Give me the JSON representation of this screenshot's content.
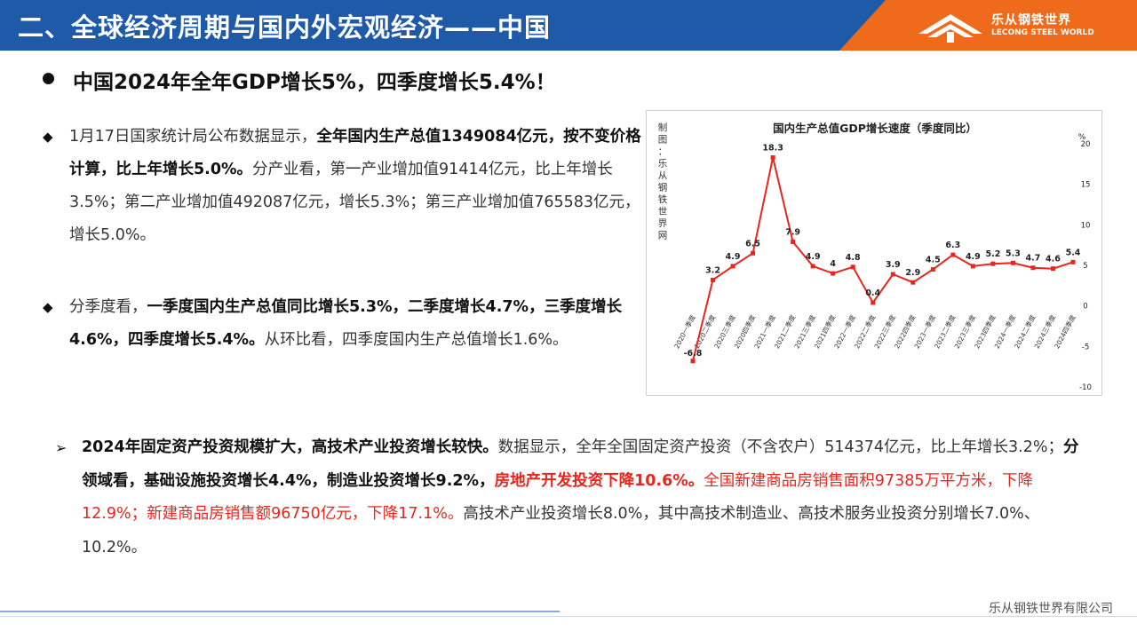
{
  "header": {
    "title": "二、全球经济周期与国内外宏观经济——中国",
    "logo_cn": "乐从钢铁世界",
    "logo_en": "LECONG STEEL WORLD",
    "colors": {
      "blue": "#1e5aa8",
      "orange": "#ef6a1a"
    }
  },
  "heading": "中国2024年全年GDP增长5%，四季度增长5.4%！",
  "paragraph1": {
    "t1": "1月17日国家统计局公布数据显示，",
    "t2": "全年国内生产总值1349084亿元，按不变价格计算，比上年增长5.0%。",
    "t3": "分产业看，第一产业增加值91414亿元，比上年增长3.5%；第二产业增加值492087亿元，增长5.3%；第三产业增加值765583亿元，增长5.0%。"
  },
  "paragraph2": {
    "t1": "分季度看，",
    "t2": "一季度国内生产总值同比增长5.3%，二季度增长4.7%，三季度增长4.6%，四季度增长5.4%。",
    "t3": "从环比看，四季度国内生产总值增长1.6%。"
  },
  "paragraph3": {
    "t1": "2024年固定资产投资规模扩大，高技术产业投资增长较快。",
    "t2": "数据显示，全年全国固定资产投资（不含农户）514374亿元，比上年增长3.2%；",
    "t3": "分领域看，基础设施投资增长4.4%，制造业投资增长9.2%，",
    "t4": "房地产开发投资下降10.6%。",
    "t5": "全国新建商品房销售面积97385万平方米，下降12.9%；新建商品房销售额96750亿元，下降17.1%。",
    "t6": "高技术产业投资增长8.0%，其中高技术制造业、高技术服务业投资分别增长7.0%、10.2%。"
  },
  "chart_data": {
    "type": "line",
    "title": "国内生产总值GDP增长速度（季度同比）",
    "source_label": "制图：乐从钢铁世界网",
    "y_unit": "%",
    "ylim": [
      -10,
      20
    ],
    "yticks": [
      -10,
      -5,
      0,
      5,
      10,
      15,
      20
    ],
    "categories": [
      "2020一季度",
      "2020二季度",
      "2020三季度",
      "2020四季度",
      "2021一季度",
      "2021二季度",
      "2021三季度",
      "2021四季度",
      "2022一季度",
      "2022二季度",
      "2022三季度",
      "2022四季度",
      "2023一季度",
      "2023二季度",
      "2023三季度",
      "2023四季度",
      "2024一季度",
      "2024二季度",
      "2024三季度",
      "2024四季度"
    ],
    "values": [
      -6.8,
      3.2,
      4.9,
      6.5,
      18.3,
      7.9,
      4.9,
      4,
      4.8,
      0.4,
      3.9,
      2.9,
      4.5,
      6.3,
      4.9,
      5.2,
      5.3,
      4.7,
      4.6,
      5.4
    ],
    "line_color": "#e8261e",
    "grid": false,
    "legend": "none"
  },
  "footer": {
    "company": "乐从钢铁世界有限公司"
  }
}
